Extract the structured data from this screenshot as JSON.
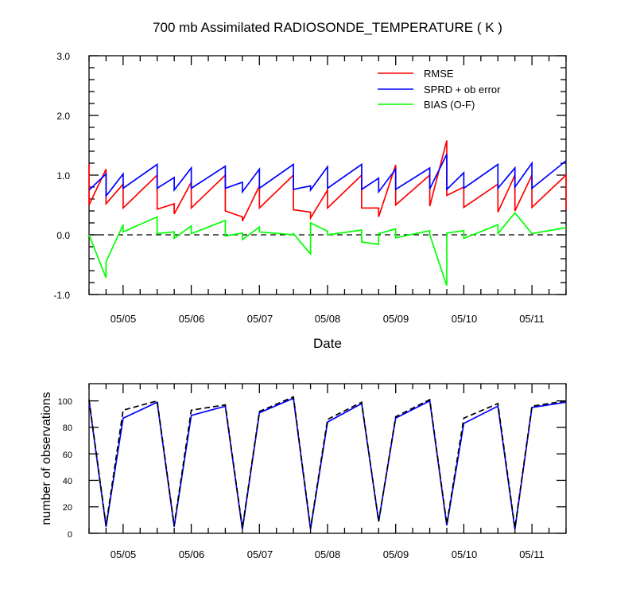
{
  "chart_data": [
    {
      "type": "line",
      "title": "700 mb Assimilated RADIOSONDE_TEMPERATURE ( K )",
      "xlabel": "Date",
      "ylabel": "",
      "ylim": [
        -1.0,
        3.0
      ],
      "xlim": [
        "05/04 12Z",
        "05/11 12Z"
      ],
      "x_ticks": [
        "05/05",
        "05/06",
        "05/07",
        "05/08",
        "05/09",
        "05/10",
        "05/11"
      ],
      "y_ticks": [
        "-1.0",
        "0.0",
        "1.0",
        "2.0",
        "3.0"
      ],
      "reference_line": 0.0,
      "legend": {
        "placement": "top-right",
        "entries": [
          "RMSE",
          "SPRD + ob error",
          "BIAS (O-F)"
        ]
      },
      "series": [
        {
          "name": "RMSE",
          "color": "#ff0000",
          "points": [
            [
              "05/04 12Z",
              1.18
            ],
            [
              "05/04 12Z",
              0.5
            ],
            [
              "05/04 18Z",
              1.1
            ],
            [
              "05/04 18Z",
              0.52
            ],
            [
              "05/05 00Z",
              0.85
            ],
            [
              "05/05 00Z",
              0.45
            ],
            [
              "05/05 12Z",
              1.0
            ],
            [
              "05/05 12Z",
              0.43
            ],
            [
              "05/05 18Z",
              0.52
            ],
            [
              "05/05 18Z",
              0.35
            ],
            [
              "05/06 00Z",
              0.88
            ],
            [
              "05/06 00Z",
              0.45
            ],
            [
              "05/06 12Z",
              1.0
            ],
            [
              "05/06 12Z",
              0.4
            ],
            [
              "05/06 18Z",
              0.3
            ],
            [
              "05/06 18Z",
              0.23
            ],
            [
              "05/07 00Z",
              0.82
            ],
            [
              "05/07 00Z",
              0.45
            ],
            [
              "05/07 12Z",
              1.0
            ],
            [
              "05/07 12Z",
              0.42
            ],
            [
              "05/07 18Z",
              0.38
            ],
            [
              "05/07 18Z",
              0.28
            ],
            [
              "05/08 00Z",
              0.75
            ],
            [
              "05/08 00Z",
              0.45
            ],
            [
              "05/08 12Z",
              1.0
            ],
            [
              "05/08 12Z",
              0.45
            ],
            [
              "05/08 18Z",
              0.45
            ],
            [
              "05/08 18Z",
              0.3
            ],
            [
              "05/09 00Z",
              1.17
            ],
            [
              "05/09 00Z",
              0.5
            ],
            [
              "05/09 12Z",
              1.0
            ],
            [
              "05/09 12Z",
              0.48
            ],
            [
              "05/09 18Z",
              1.58
            ],
            [
              "05/09 18Z",
              0.66
            ],
            [
              "05/10 00Z",
              0.8
            ],
            [
              "05/10 00Z",
              0.46
            ],
            [
              "05/10 12Z",
              0.85
            ],
            [
              "05/10 12Z",
              0.38
            ],
            [
              "05/10 18Z",
              1.0
            ],
            [
              "05/10 18Z",
              0.4
            ],
            [
              "05/11 00Z",
              1.0
            ],
            [
              "05/11 00Z",
              0.46
            ],
            [
              "05/11 12Z",
              1.0
            ],
            [
              "05/11 12Z",
              0.42
            ]
          ]
        },
        {
          "name": "SPRD + ob error",
          "color": "#0000ff",
          "points": [
            [
              "05/04 12Z",
              0.75
            ],
            [
              "05/04 18Z",
              1.02
            ],
            [
              "05/04 18Z",
              0.65
            ],
            [
              "05/05 00Z",
              1.02
            ],
            [
              "05/05 00Z",
              0.78
            ],
            [
              "05/05 12Z",
              1.18
            ],
            [
              "05/05 12Z",
              0.78
            ],
            [
              "05/05 18Z",
              0.96
            ],
            [
              "05/05 18Z",
              0.75
            ],
            [
              "05/06 00Z",
              1.12
            ],
            [
              "05/06 00Z",
              0.78
            ],
            [
              "05/06 12Z",
              1.15
            ],
            [
              "05/06 12Z",
              0.78
            ],
            [
              "05/06 18Z",
              0.88
            ],
            [
              "05/06 18Z",
              0.72
            ],
            [
              "05/07 00Z",
              1.1
            ],
            [
              "05/07 00Z",
              0.78
            ],
            [
              "05/07 12Z",
              1.18
            ],
            [
              "05/07 12Z",
              0.76
            ],
            [
              "05/07 18Z",
              0.82
            ],
            [
              "05/07 18Z",
              0.75
            ],
            [
              "05/08 00Z",
              1.14
            ],
            [
              "05/08 00Z",
              0.78
            ],
            [
              "05/08 12Z",
              1.18
            ],
            [
              "05/08 12Z",
              0.76
            ],
            [
              "05/08 18Z",
              0.95
            ],
            [
              "05/08 18Z",
              0.72
            ],
            [
              "05/09 00Z",
              1.1
            ],
            [
              "05/09 00Z",
              0.76
            ],
            [
              "05/09 12Z",
              1.12
            ],
            [
              "05/09 12Z",
              0.77
            ],
            [
              "05/09 18Z",
              1.35
            ],
            [
              "05/09 18Z",
              0.76
            ],
            [
              "05/10 00Z",
              1.04
            ],
            [
              "05/10 00Z",
              0.78
            ],
            [
              "05/10 12Z",
              1.18
            ],
            [
              "05/10 12Z",
              0.78
            ],
            [
              "05/10 18Z",
              1.12
            ],
            [
              "05/10 18Z",
              0.8
            ],
            [
              "05/11 00Z",
              1.2
            ],
            [
              "05/11 00Z",
              0.78
            ],
            [
              "05/11 12Z",
              1.24
            ]
          ]
        },
        {
          "name": "BIAS (O-F)",
          "color": "#00ff00",
          "points": [
            [
              "05/04 12Z",
              0.0
            ],
            [
              "05/04 18Z",
              -0.72
            ],
            [
              "05/04 18Z",
              -0.45
            ],
            [
              "05/05 00Z",
              0.17
            ],
            [
              "05/05 00Z",
              0.05
            ],
            [
              "05/05 12Z",
              0.3
            ],
            [
              "05/05 12Z",
              0.02
            ],
            [
              "05/05 18Z",
              0.05
            ],
            [
              "05/05 18Z",
              -0.06
            ],
            [
              "05/06 00Z",
              0.15
            ],
            [
              "05/06 00Z",
              0.02
            ],
            [
              "05/06 12Z",
              0.24
            ],
            [
              "05/06 12Z",
              -0.02
            ],
            [
              "05/06 18Z",
              0.03
            ],
            [
              "05/06 18Z",
              -0.08
            ],
            [
              "05/07 00Z",
              0.13
            ],
            [
              "05/07 00Z",
              0.05
            ],
            [
              "05/07 12Z",
              0.0
            ],
            [
              "05/07 12Z",
              0.02
            ],
            [
              "05/07 18Z",
              -0.32
            ],
            [
              "05/07 18Z",
              0.2
            ],
            [
              "05/08 00Z",
              0.06
            ],
            [
              "05/08 00Z",
              0.0
            ],
            [
              "05/08 12Z",
              0.08
            ],
            [
              "05/08 12Z",
              -0.12
            ],
            [
              "05/08 18Z",
              -0.16
            ],
            [
              "05/08 18Z",
              0.02
            ],
            [
              "05/09 00Z",
              0.1
            ],
            [
              "05/09 00Z",
              -0.05
            ],
            [
              "05/09 12Z",
              0.07
            ],
            [
              "05/09 12Z",
              0.0
            ],
            [
              "05/09 18Z",
              -0.85
            ],
            [
              "05/09 18Z",
              0.03
            ],
            [
              "05/10 00Z",
              0.07
            ],
            [
              "05/10 00Z",
              -0.06
            ],
            [
              "05/10 12Z",
              0.17
            ],
            [
              "05/10 12Z",
              0.02
            ],
            [
              "05/10 18Z",
              0.37
            ],
            [
              "05/11 00Z",
              0.02
            ],
            [
              "05/11 12Z",
              0.12
            ]
          ]
        }
      ]
    },
    {
      "type": "line",
      "title": "",
      "xlabel": "",
      "ylabel": "number of observations",
      "ylim": [
        0,
        113
      ],
      "xlim": [
        "05/04 12Z",
        "05/11 12Z"
      ],
      "x_ticks": [
        "05/05",
        "05/06",
        "05/07",
        "05/08",
        "05/09",
        "05/10",
        "05/11"
      ],
      "y_ticks": [
        "0",
        "20",
        "40",
        "60",
        "80",
        "100"
      ],
      "series": [
        {
          "style": "solid",
          "color": "#0000ff",
          "points": [
            [
              "05/04 12Z",
              100
            ],
            [
              "05/04 18Z",
              5
            ],
            [
              "05/05 00Z",
              87
            ],
            [
              "05/05 12Z",
              99
            ],
            [
              "05/05 18Z",
              5
            ],
            [
              "05/06 00Z",
              89
            ],
            [
              "05/06 12Z",
              96
            ],
            [
              "05/06 18Z",
              3
            ],
            [
              "05/07 00Z",
              91
            ],
            [
              "05/07 12Z",
              102
            ],
            [
              "05/07 18Z",
              3
            ],
            [
              "05/08 00Z",
              84
            ],
            [
              "05/08 12Z",
              98
            ],
            [
              "05/08 18Z",
              9
            ],
            [
              "05/09 00Z",
              87
            ],
            [
              "05/09 12Z",
              100
            ],
            [
              "05/09 18Z",
              6
            ],
            [
              "05/10 00Z",
              83
            ],
            [
              "05/10 12Z",
              96
            ],
            [
              "05/10 18Z",
              3
            ],
            [
              "05/11 00Z",
              95
            ],
            [
              "05/11 12Z",
              99
            ]
          ]
        },
        {
          "style": "dashed",
          "color": "#000000",
          "points": [
            [
              "05/04 12Z",
              101
            ],
            [
              "05/04 18Z",
              6
            ],
            [
              "05/05 00Z",
              93
            ],
            [
              "05/05 12Z",
              100
            ],
            [
              "05/05 18Z",
              6
            ],
            [
              "05/06 00Z",
              93
            ],
            [
              "05/06 12Z",
              97
            ],
            [
              "05/06 18Z",
              4
            ],
            [
              "05/07 00Z",
              92
            ],
            [
              "05/07 12Z",
              103
            ],
            [
              "05/07 18Z",
              4
            ],
            [
              "05/08 00Z",
              86
            ],
            [
              "05/08 12Z",
              99
            ],
            [
              "05/08 18Z",
              9
            ],
            [
              "05/09 00Z",
              88
            ],
            [
              "05/09 12Z",
              101
            ],
            [
              "05/09 18Z",
              7
            ],
            [
              "05/10 00Z",
              87
            ],
            [
              "05/10 12Z",
              98
            ],
            [
              "05/10 18Z",
              4
            ],
            [
              "05/11 00Z",
              96
            ],
            [
              "05/11 12Z",
              100
            ]
          ]
        }
      ]
    }
  ]
}
